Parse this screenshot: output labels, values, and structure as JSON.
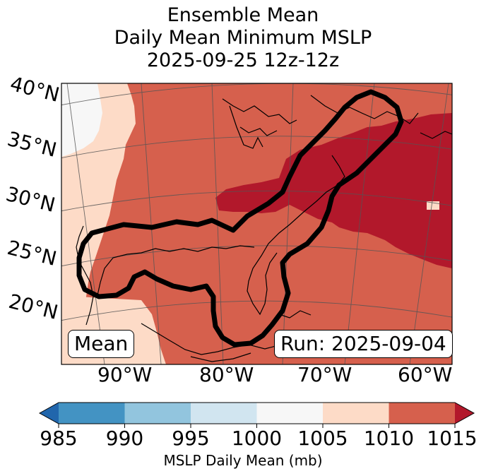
{
  "title": {
    "line1": "Ensemble Mean",
    "line2": "Daily Mean Minimum MSLP",
    "line3": "2025-09-25 12z-12z"
  },
  "labels": {
    "mean": "Mean",
    "run": "Run: 2025-09-04"
  },
  "latitudes": [
    "40°N",
    "35°N",
    "30°N",
    "25°N",
    "20°N"
  ],
  "longitudes": [
    "90°W",
    "80°W",
    "70°W",
    "60°W"
  ],
  "colorbar": {
    "label": "MSLP Daily Mean (mb)",
    "ticks": [
      "985",
      "990",
      "995",
      "1000",
      "1005",
      "1010",
      "1015"
    ],
    "colors": [
      "#4393c3",
      "#92c5de",
      "#d1e5f0",
      "#f7f7f7",
      "#fddbc7",
      "#d6604d",
      "#b2182b"
    ],
    "under_color": "#2166ac",
    "over_color": "#b2182b"
  },
  "legend_colors": {
    "p1000_1005": "#f7f7f7",
    "p1005_1010": "#fddbc7",
    "p1010_1015": "#d6604d",
    "p1015_plus": "#b2182b"
  }
}
